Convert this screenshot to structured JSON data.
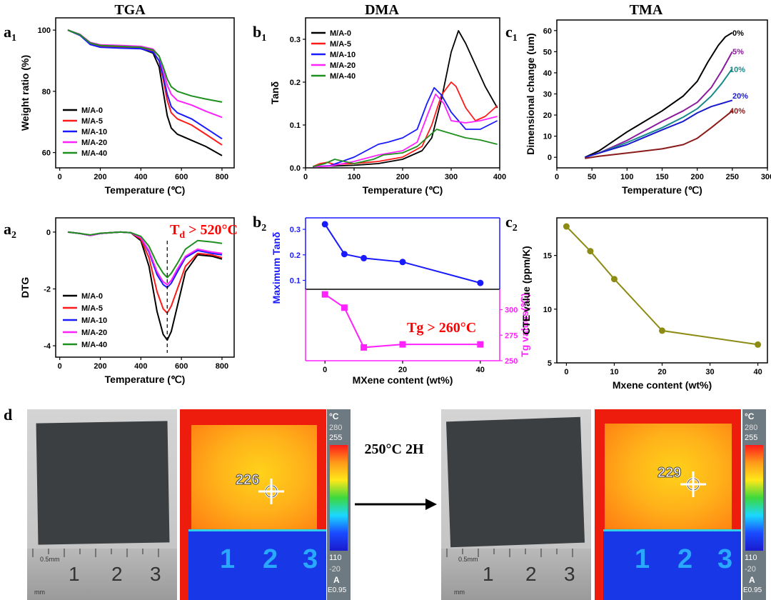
{
  "headers": {
    "tga": "TGA",
    "dma": "DMA",
    "tma": "TMA"
  },
  "panel_labels": {
    "a1": [
      "a",
      "1"
    ],
    "b1": [
      "b",
      "1"
    ],
    "c1": [
      "c",
      "1"
    ],
    "a2": [
      "a",
      "2"
    ],
    "b2": [
      "b",
      "2"
    ],
    "c2": [
      "c",
      "2"
    ],
    "d": "d"
  },
  "colors": {
    "M/A-0": "#000000",
    "M/A-5": "#ff1a1a",
    "M/A-10": "#1a1aff",
    "M/A-20": "#ff22ff",
    "M/A-40": "#1f8f1f",
    "tma_0": "#000000",
    "tma_5": "#8b1a9e",
    "tma_10": "#1a8a8a",
    "tma_20": "#1a1acc",
    "tma_40": "#8b1a1a",
    "cte": "#8c8c14",
    "annot": "#ff0000",
    "axis_left_b2": "#1a1aff",
    "axis_right_b2": "#ff22ff"
  },
  "annotations": {
    "td_main": "T",
    "td_sub": "d",
    "td_rest": " > 520°C",
    "tg": "Tg > 260°C",
    "arrow_label": "250°C 2H"
  },
  "thermal": {
    "left": {
      "readout": "226",
      "scale_unit": "°C",
      "scale_max": "280",
      "scale_hi": "255",
      "scale_lo": "110",
      "scale_min": "-20",
      "mode": "A",
      "emissivity": "E0.95"
    },
    "right": {
      "readout": "229",
      "scale_unit": "°C",
      "scale_max": "280",
      "scale_hi": "255",
      "scale_lo": "110",
      "scale_min": "-20",
      "mode": "A",
      "emissivity": "E0.95"
    }
  },
  "ruler": {
    "unit_top": "0.5mm",
    "unit_bottom": "mm",
    "numbers": [
      "1",
      "2",
      "3"
    ]
  },
  "chart_data": [
    {
      "id": "a1",
      "type": "line",
      "xlabel": "Temperature (℃)",
      "ylabel": "Weight ratio (%)",
      "xlim": [
        -20,
        860
      ],
      "ylim": [
        55,
        104
      ],
      "xticks": [
        0,
        200,
        400,
        600,
        800
      ],
      "yticks": [
        60,
        80,
        100
      ],
      "legend": [
        "M/A-0",
        "M/A-5",
        "M/A-10",
        "M/A-20",
        "M/A-40"
      ],
      "series": [
        {
          "name": "M/A-0",
          "x": [
            40,
            100,
            150,
            200,
            300,
            400,
            460,
            490,
            510,
            530,
            550,
            580,
            650,
            720,
            800
          ],
          "y": [
            100,
            98.3,
            95.5,
            94.6,
            94.3,
            94,
            92.5,
            88,
            80,
            72,
            68,
            66,
            64,
            62,
            59
          ]
        },
        {
          "name": "M/A-5",
          "x": [
            40,
            100,
            150,
            200,
            300,
            400,
            460,
            490,
            510,
            530,
            550,
            580,
            650,
            720,
            800
          ],
          "y": [
            100,
            98.3,
            95.5,
            94.6,
            94.4,
            94.1,
            93,
            90,
            84,
            77,
            73,
            71,
            69,
            66,
            62.5
          ]
        },
        {
          "name": "M/A-10",
          "x": [
            40,
            100,
            150,
            200,
            300,
            400,
            460,
            490,
            510,
            530,
            550,
            580,
            650,
            720,
            800
          ],
          "y": [
            100,
            98.3,
            95.3,
            94.4,
            94.1,
            93.9,
            92.8,
            90,
            85,
            79,
            75,
            73,
            71,
            68,
            64.5
          ]
        },
        {
          "name": "M/A-20",
          "x": [
            40,
            100,
            150,
            200,
            300,
            400,
            460,
            490,
            510,
            530,
            550,
            580,
            650,
            720,
            800
          ],
          "y": [
            100,
            98.6,
            96,
            95.2,
            95,
            94.7,
            93.8,
            91.5,
            87,
            82,
            79,
            77,
            75.5,
            73.5,
            71.5
          ]
        },
        {
          "name": "M/A-40",
          "x": [
            40,
            100,
            150,
            200,
            300,
            400,
            460,
            490,
            510,
            530,
            550,
            580,
            650,
            720,
            800
          ],
          "y": [
            100,
            98.5,
            95.8,
            95,
            94.7,
            94.4,
            93.5,
            91.5,
            88,
            84,
            81.5,
            80,
            78.5,
            77.5,
            76.5
          ]
        }
      ]
    },
    {
      "id": "b1",
      "type": "line",
      "xlabel": "Temperature (℃)",
      "ylabel": "Tanδ",
      "xlim": [
        0,
        400
      ],
      "ylim": [
        0,
        0.35
      ],
      "xticks": [
        0,
        100,
        200,
        300,
        400
      ],
      "yticks": [
        0.0,
        0.1,
        0.2,
        0.3
      ],
      "legend": [
        "M/A-0",
        "M/A-5",
        "M/A-10",
        "M/A-20",
        "M/A-40"
      ],
      "series": [
        {
          "name": "M/A-0",
          "x": [
            15,
            50,
            100,
            150,
            200,
            240,
            260,
            280,
            300,
            315,
            330,
            350,
            370,
            390,
            395
          ],
          "y": [
            0.003,
            0.004,
            0.006,
            0.01,
            0.02,
            0.04,
            0.07,
            0.16,
            0.27,
            0.32,
            0.29,
            0.24,
            0.19,
            0.15,
            0.14
          ]
        },
        {
          "name": "M/A-5",
          "x": [
            15,
            30,
            45,
            60,
            100,
            150,
            200,
            240,
            260,
            280,
            300,
            310,
            330,
            350,
            370,
            395
          ],
          "y": [
            0.003,
            0.01,
            0.013,
            0.008,
            0.01,
            0.015,
            0.025,
            0.05,
            0.1,
            0.17,
            0.2,
            0.19,
            0.14,
            0.11,
            0.12,
            0.145
          ]
        },
        {
          "name": "M/A-10",
          "x": [
            15,
            50,
            100,
            150,
            170,
            200,
            230,
            250,
            265,
            280,
            300,
            330,
            360,
            395
          ],
          "y": [
            0.003,
            0.005,
            0.025,
            0.055,
            0.06,
            0.07,
            0.09,
            0.15,
            0.187,
            0.17,
            0.13,
            0.09,
            0.09,
            0.11
          ]
        },
        {
          "name": "M/A-20",
          "x": [
            15,
            50,
            100,
            150,
            200,
            230,
            250,
            268,
            285,
            300,
            330,
            360,
            395
          ],
          "y": [
            0.003,
            0.004,
            0.015,
            0.03,
            0.04,
            0.06,
            0.12,
            0.172,
            0.15,
            0.11,
            0.105,
            0.11,
            0.12
          ]
        },
        {
          "name": "M/A-40",
          "x": [
            15,
            40,
            60,
            100,
            140,
            160,
            200,
            230,
            250,
            270,
            300,
            330,
            360,
            395
          ],
          "y": [
            0.003,
            0.01,
            0.02,
            0.01,
            0.02,
            0.03,
            0.035,
            0.05,
            0.07,
            0.09,
            0.08,
            0.07,
            0.065,
            0.055
          ]
        }
      ]
    },
    {
      "id": "c1",
      "type": "line",
      "xlabel": "Temperature (℃)",
      "ylabel": "Dimensional change (um)",
      "xlim": [
        0,
        300
      ],
      "ylim": [
        -5,
        65
      ],
      "xticks": [
        0,
        50,
        100,
        150,
        200,
        250,
        300
      ],
      "yticks": [
        0,
        10,
        20,
        30,
        40,
        50,
        60
      ],
      "labels": [
        "0%",
        "5%",
        "10%",
        "20%",
        "40%"
      ],
      "series": [
        {
          "name": "0%",
          "x": [
            40,
            60,
            100,
            150,
            180,
            200,
            215,
            230,
            240,
            250
          ],
          "y": [
            0,
            3,
            12,
            22,
            29,
            36,
            45,
            53,
            57,
            59
          ]
        },
        {
          "name": "5%",
          "x": [
            40,
            60,
            100,
            150,
            180,
            200,
            220,
            235,
            250
          ],
          "y": [
            0,
            2,
            8,
            17,
            22,
            26,
            33,
            41,
            50
          ]
        },
        {
          "name": "10%",
          "x": [
            40,
            60,
            100,
            150,
            180,
            200,
            220,
            235,
            250
          ],
          "y": [
            0,
            2,
            7,
            14,
            19,
            23,
            29,
            35,
            42
          ]
        },
        {
          "name": "20%",
          "x": [
            40,
            60,
            100,
            150,
            180,
            200,
            220,
            250
          ],
          "y": [
            0,
            2,
            6,
            13,
            17,
            21,
            24,
            27
          ]
        },
        {
          "name": "40%",
          "x": [
            40,
            60,
            100,
            150,
            180,
            200,
            220,
            250
          ],
          "y": [
            -0.5,
            0.5,
            2,
            4,
            6,
            9,
            14,
            22
          ]
        }
      ]
    },
    {
      "id": "a2",
      "type": "line",
      "xlabel": "Temperature (℃)",
      "ylabel": "DTG",
      "xlim": [
        -20,
        860
      ],
      "ylim": [
        -4.4,
        0.5
      ],
      "xticks": [
        0,
        200,
        400,
        600,
        800
      ],
      "yticks": [
        -4,
        -2,
        0
      ],
      "legend": [
        "M/A-0",
        "M/A-5",
        "M/A-10",
        "M/A-20",
        "M/A-40"
      ],
      "series": [
        {
          "name": "M/A-0",
          "x": [
            40,
            100,
            150,
            200,
            250,
            300,
            350,
            400,
            440,
            480,
            510,
            530,
            550,
            580,
            620,
            680,
            750,
            800
          ],
          "y": [
            0,
            -0.05,
            -0.12,
            -0.05,
            -0.02,
            0,
            -0.02,
            -0.3,
            -1.2,
            -2.8,
            -3.6,
            -3.8,
            -3.5,
            -2.6,
            -1.4,
            -0.8,
            -0.85,
            -0.95
          ]
        },
        {
          "name": "M/A-5",
          "x": [
            40,
            100,
            150,
            200,
            250,
            300,
            350,
            400,
            440,
            480,
            510,
            530,
            550,
            580,
            620,
            680,
            750,
            800
          ],
          "y": [
            0,
            -0.05,
            -0.12,
            -0.05,
            -0.02,
            0,
            -0.02,
            -0.25,
            -0.9,
            -2.1,
            -2.7,
            -2.85,
            -2.6,
            -2,
            -1.2,
            -0.75,
            -0.8,
            -0.9
          ]
        },
        {
          "name": "M/A-10",
          "x": [
            40,
            100,
            150,
            200,
            250,
            300,
            350,
            400,
            440,
            480,
            510,
            530,
            550,
            580,
            620,
            680,
            750,
            800
          ],
          "y": [
            0,
            -0.05,
            -0.12,
            -0.05,
            -0.02,
            0,
            -0.02,
            -0.2,
            -0.7,
            -1.5,
            -1.85,
            -1.95,
            -1.8,
            -1.4,
            -0.9,
            -0.65,
            -0.75,
            -0.8
          ]
        },
        {
          "name": "M/A-20",
          "x": [
            40,
            100,
            150,
            200,
            250,
            300,
            350,
            400,
            440,
            480,
            510,
            530,
            550,
            580,
            620,
            680,
            750,
            800
          ],
          "y": [
            0,
            -0.05,
            -0.12,
            -0.05,
            -0.02,
            0,
            -0.02,
            -0.2,
            -0.65,
            -1.4,
            -1.75,
            -1.85,
            -1.7,
            -1.3,
            -0.85,
            -0.6,
            -0.7,
            -0.75
          ]
        },
        {
          "name": "M/A-40",
          "x": [
            40,
            100,
            150,
            200,
            250,
            300,
            350,
            400,
            440,
            480,
            510,
            530,
            550,
            580,
            620,
            680,
            750,
            800
          ],
          "y": [
            0,
            -0.05,
            -0.1,
            -0.04,
            -0.02,
            0,
            -0.02,
            -0.15,
            -0.5,
            -1.1,
            -1.45,
            -1.6,
            -1.45,
            -1.1,
            -0.6,
            -0.3,
            -0.35,
            -0.4
          ]
        }
      ]
    },
    {
      "id": "b2",
      "type": "line",
      "xlabel": "MXene content (wt%)",
      "ylabel_top": "Maximum Tanδ",
      "ylabel_bottom": "Tg values(℃)",
      "xlim": [
        -5,
        45
      ],
      "xticks": [
        0,
        20,
        40
      ],
      "top": {
        "ylim": [
          0.065,
          0.345
        ],
        "yticks": [
          0.1,
          0.2,
          0.3
        ],
        "x": [
          0,
          5,
          10,
          20,
          40
        ],
        "y": [
          0.32,
          0.203,
          0.187,
          0.172,
          0.09
        ]
      },
      "bottom": {
        "ylim": [
          250,
          320
        ],
        "yticks": [
          250,
          275,
          300
        ],
        "x": [
          0,
          5,
          10,
          20,
          40
        ],
        "y": [
          315,
          302,
          263,
          266,
          266
        ]
      }
    },
    {
      "id": "c2",
      "type": "line",
      "xlabel": "Mxene content (wt%)",
      "ylabel": "CTE value (ppm/K)",
      "xlim": [
        -2,
        42
      ],
      "ylim": [
        5,
        18.5
      ],
      "xticks": [
        0,
        10,
        20,
        30,
        40
      ],
      "yticks": [
        5,
        10,
        15
      ],
      "series": [
        {
          "name": "CTE",
          "x": [
            0,
            5,
            10,
            20,
            40
          ],
          "y": [
            17.7,
            15.4,
            12.8,
            8.0,
            6.7
          ]
        }
      ]
    }
  ]
}
